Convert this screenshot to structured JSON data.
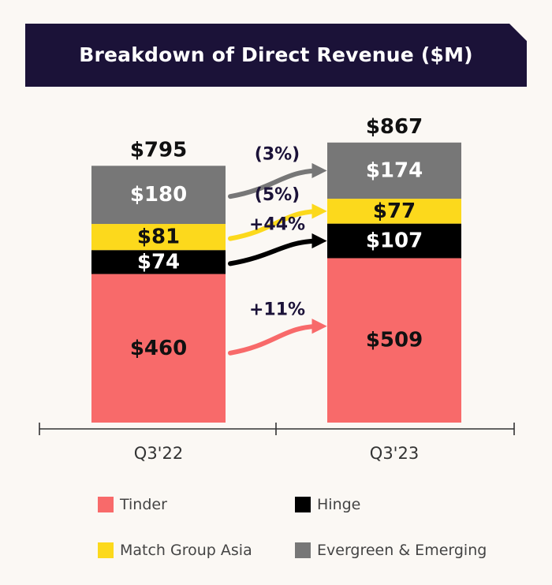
{
  "chart_data": {
    "type": "bar",
    "stacked": true,
    "title": "Breakdown of  Direct Revenue ($M)",
    "categories": [
      "Q3'22",
      "Q3'23"
    ],
    "series": [
      {
        "name": "Tinder",
        "color": "#f86a6a",
        "values": [
          460,
          509
        ],
        "labels": [
          "$460",
          "$509"
        ],
        "label_color": "#111111"
      },
      {
        "name": "Hinge",
        "color": "#000000",
        "values": [
          74,
          107
        ],
        "labels": [
          "$74",
          "$107"
        ],
        "label_color": "#ffffff"
      },
      {
        "name": "Match Group Asia",
        "color": "#fcd91c",
        "values": [
          81,
          77
        ],
        "labels": [
          "$81",
          "$77"
        ],
        "label_color": "#111111"
      },
      {
        "name": "Evergreen & Emerging",
        "color": "#777777",
        "values": [
          180,
          174
        ],
        "labels": [
          "$180",
          "$174"
        ],
        "label_color": "#ffffff"
      }
    ],
    "totals": [
      "$795",
      "$867"
    ],
    "growth_annotations": [
      {
        "series": "Evergreen & Emerging",
        "label": "(3%)",
        "color": "#777777"
      },
      {
        "series": "Match Group Asia",
        "label": "(5%)",
        "color": "#fcd91c"
      },
      {
        "series": "Hinge",
        "label": "+44%",
        "color": "#000000"
      },
      {
        "series": "Tinder",
        "label": "+11%",
        "color": "#f86a6a"
      }
    ],
    "legend_position": "bottom",
    "grid": false
  }
}
